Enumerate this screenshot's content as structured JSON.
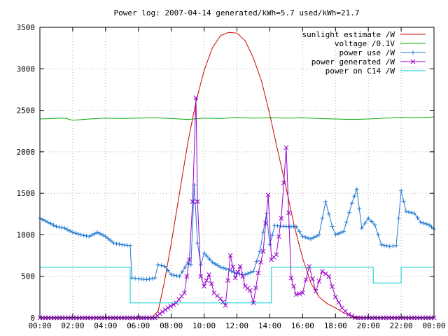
{
  "chart_data": {
    "type": "line",
    "title": "Power log: 2007-04-14 generated/kWh=5.7 used/kWh=21.7",
    "xlabel": "",
    "ylabel": "",
    "x_ticks": [
      "00:00",
      "02:00",
      "04:00",
      "06:00",
      "08:00",
      "10:00",
      "12:00",
      "14:00",
      "16:00",
      "18:00",
      "20:00",
      "22:00",
      "00:00"
    ],
    "y_ticks": [
      "0",
      "500",
      "1000",
      "1500",
      "2000",
      "2500",
      "3000",
      "3500"
    ],
    "xlim": [
      0,
      24
    ],
    "ylim": [
      0,
      3500
    ],
    "grid": true,
    "legend_position": "top-right",
    "series": [
      {
        "name": "sunlight estimate /W",
        "color": "#cc0000",
        "marker": "none",
        "points": [
          [
            0,
            0
          ],
          [
            6.8,
            0
          ],
          [
            7.2,
            80
          ],
          [
            7.6,
            450
          ],
          [
            8,
            900
          ],
          [
            8.5,
            1500
          ],
          [
            9,
            2100
          ],
          [
            9.5,
            2600
          ],
          [
            10,
            2980
          ],
          [
            10.5,
            3250
          ],
          [
            11,
            3400
          ],
          [
            11.5,
            3440
          ],
          [
            12,
            3430
          ],
          [
            12.5,
            3340
          ],
          [
            13,
            3130
          ],
          [
            13.5,
            2850
          ],
          [
            14,
            2450
          ],
          [
            14.5,
            2000
          ],
          [
            15,
            1560
          ],
          [
            15.5,
            1100
          ],
          [
            16,
            720
          ],
          [
            16.5,
            420
          ],
          [
            17,
            250
          ],
          [
            17.5,
            170
          ],
          [
            18,
            120
          ],
          [
            18.5,
            60
          ],
          [
            19,
            20
          ],
          [
            19.5,
            0
          ],
          [
            24,
            0
          ]
        ]
      },
      {
        "name": "voltage /0.1V",
        "color": "#00aa00",
        "marker": "none",
        "points": [
          [
            0,
            2395
          ],
          [
            0.8,
            2400
          ],
          [
            1.5,
            2405
          ],
          [
            2,
            2380
          ],
          [
            3,
            2395
          ],
          [
            4,
            2405
          ],
          [
            5,
            2400
          ],
          [
            6,
            2405
          ],
          [
            7,
            2410
          ],
          [
            8,
            2400
          ],
          [
            9,
            2390
          ],
          [
            10,
            2405
          ],
          [
            11,
            2400
          ],
          [
            12,
            2415
          ],
          [
            13,
            2405
          ],
          [
            14,
            2410
          ],
          [
            15,
            2405
          ],
          [
            16,
            2410
          ],
          [
            17,
            2400
          ],
          [
            18,
            2395
          ],
          [
            19,
            2390
          ],
          [
            20,
            2395
          ],
          [
            21,
            2405
          ],
          [
            22,
            2415
          ],
          [
            23,
            2410
          ],
          [
            24,
            2420
          ]
        ]
      },
      {
        "name": "power use /W",
        "color": "#1f78d4",
        "marker": "plus",
        "points": [
          [
            0,
            1200
          ],
          [
            0.5,
            1150
          ],
          [
            1,
            1100
          ],
          [
            1.5,
            1080
          ],
          [
            2,
            1030
          ],
          [
            2.5,
            1000
          ],
          [
            3,
            980
          ],
          [
            3.5,
            1030
          ],
          [
            4,
            980
          ],
          [
            4.5,
            900
          ],
          [
            5,
            880
          ],
          [
            5.5,
            870
          ],
          [
            5.6,
            480
          ],
          [
            6,
            470
          ],
          [
            6.5,
            460
          ],
          [
            7,
            480
          ],
          [
            7.2,
            640
          ],
          [
            7.6,
            620
          ],
          [
            8,
            520
          ],
          [
            8.5,
            500
          ],
          [
            9,
            660
          ],
          [
            9.2,
            640
          ],
          [
            9.4,
            1600
          ],
          [
            9.6,
            900
          ],
          [
            9.8,
            640
          ],
          [
            10,
            780
          ],
          [
            10.5,
            670
          ],
          [
            11,
            610
          ],
          [
            11.5,
            580
          ],
          [
            12,
            530
          ],
          [
            12.5,
            520
          ],
          [
            13,
            560
          ],
          [
            13.4,
            800
          ],
          [
            13.8,
            1260
          ],
          [
            14,
            880
          ],
          [
            14.3,
            1110
          ],
          [
            15,
            1100
          ],
          [
            15.6,
            1100
          ],
          [
            16,
            980
          ],
          [
            16.5,
            950
          ],
          [
            17,
            1000
          ],
          [
            17.4,
            1400
          ],
          [
            17.8,
            1100
          ],
          [
            18,
            1000
          ],
          [
            18.5,
            1040
          ],
          [
            19,
            1380
          ],
          [
            19.3,
            1550
          ],
          [
            19.6,
            1080
          ],
          [
            20,
            1200
          ],
          [
            20.4,
            1120
          ],
          [
            20.8,
            880
          ],
          [
            21.3,
            860
          ],
          [
            21.7,
            870
          ],
          [
            22,
            1530
          ],
          [
            22.3,
            1280
          ],
          [
            22.8,
            1260
          ],
          [
            23.2,
            1150
          ],
          [
            23.7,
            1120
          ],
          [
            24,
            1070
          ]
        ]
      },
      {
        "name": "power generated /W",
        "color": "#9900cc",
        "marker": "cross",
        "points": [
          [
            0,
            0
          ],
          [
            6,
            0
          ],
          [
            7,
            0
          ],
          [
            7.3,
            50
          ],
          [
            7.8,
            120
          ],
          [
            8.3,
            180
          ],
          [
            8.8,
            300
          ],
          [
            9.1,
            700
          ],
          [
            9.3,
            1400
          ],
          [
            9.5,
            2650
          ],
          [
            9.6,
            1400
          ],
          [
            9.8,
            500
          ],
          [
            10,
            380
          ],
          [
            10.3,
            520
          ],
          [
            10.6,
            300
          ],
          [
            11,
            230
          ],
          [
            11.3,
            150
          ],
          [
            11.6,
            750
          ],
          [
            11.9,
            480
          ],
          [
            12.2,
            620
          ],
          [
            12.5,
            380
          ],
          [
            12.8,
            330
          ],
          [
            13,
            180
          ],
          [
            13.3,
            540
          ],
          [
            13.6,
            800
          ],
          [
            13.9,
            1480
          ],
          [
            14.1,
            700
          ],
          [
            14.4,
            760
          ],
          [
            14.7,
            1200
          ],
          [
            15,
            2050
          ],
          [
            15.3,
            480
          ],
          [
            15.6,
            280
          ],
          [
            16,
            300
          ],
          [
            16.4,
            620
          ],
          [
            16.8,
            320
          ],
          [
            17.2,
            560
          ],
          [
            17.6,
            500
          ],
          [
            18,
            250
          ],
          [
            18.4,
            120
          ],
          [
            18.8,
            40
          ],
          [
            19.2,
            0
          ],
          [
            24,
            0
          ]
        ]
      },
      {
        "name": "power on C14 /W",
        "color": "#00cccc",
        "marker": "none",
        "points": [
          [
            0,
            610
          ],
          [
            5.5,
            610
          ],
          [
            5.5,
            180
          ],
          [
            11,
            180
          ],
          [
            13,
            180
          ],
          [
            14.1,
            180
          ],
          [
            14.1,
            610
          ],
          [
            20.3,
            610
          ],
          [
            20.3,
            420
          ],
          [
            22,
            420
          ],
          [
            22,
            610
          ],
          [
            24,
            610
          ]
        ]
      }
    ]
  }
}
